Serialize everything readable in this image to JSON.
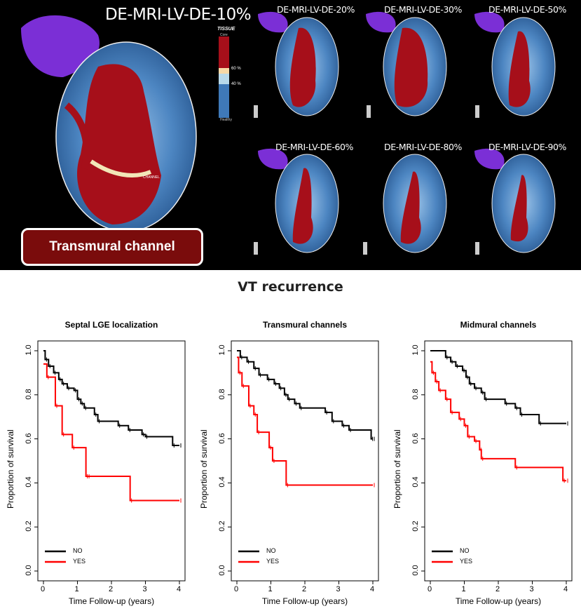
{
  "panel_top": {
    "main_label": "DE-MRI-LV-DE-10%",
    "thumb_labels": [
      "DE-MRI-LV-DE-20%",
      "DE-MRI-LV-DE-30%",
      "DE-MRI-LV-DE-50%",
      "DE-MRI-LV-DE-60%",
      "DE-MRI-LV-DE-80%",
      "DE-MRI-LV-DE-90%"
    ],
    "channel_box": "Transmural channel",
    "legend": {
      "title": "TISSUE",
      "core": "Core",
      "pct60": "60 %",
      "pct40": "40 %",
      "healthy": "Healthy"
    },
    "channel_tag": "CHANNEL",
    "colors": {
      "scar": "#a60f1a",
      "border": "#f2e6b8",
      "healthy": "#3f79b8",
      "atrium": "#7b2fd6"
    }
  },
  "section_title": "VT recurrence",
  "chart_data": [
    {
      "type": "line",
      "title": "Septal LGE localization",
      "xlabel": "Time Follow-up (years)",
      "ylabel": "Proportion of survival",
      "xlim": [
        0,
        4
      ],
      "ylim": [
        0,
        1
      ],
      "xticks": [
        "0",
        "1",
        "2",
        "3",
        "4"
      ],
      "yticks": [
        "0.0",
        "0.2",
        "0.4",
        "0.6",
        "0.8",
        "1.0"
      ],
      "legend": [
        "NO",
        "YES"
      ],
      "series": [
        {
          "name": "NO",
          "color": "#000000",
          "steps": [
            [
              0,
              1.0
            ],
            [
              0.05,
              0.96
            ],
            [
              0.15,
              0.93
            ],
            [
              0.3,
              0.9
            ],
            [
              0.45,
              0.87
            ],
            [
              0.55,
              0.85
            ],
            [
              0.7,
              0.83
            ],
            [
              0.9,
              0.82
            ],
            [
              1.0,
              0.78
            ],
            [
              1.1,
              0.76
            ],
            [
              1.2,
              0.74
            ],
            [
              1.5,
              0.71
            ],
            [
              1.6,
              0.68
            ],
            [
              2.2,
              0.66
            ],
            [
              2.5,
              0.64
            ],
            [
              2.9,
              0.62
            ],
            [
              3.0,
              0.61
            ],
            [
              3.8,
              0.57
            ],
            [
              4.0,
              0.57
            ]
          ]
        },
        {
          "name": "YES",
          "color": "#ff0000",
          "steps": [
            [
              0,
              0.94
            ],
            [
              0.1,
              0.88
            ],
            [
              0.35,
              0.75
            ],
            [
              0.55,
              0.62
            ],
            [
              0.85,
              0.56
            ],
            [
              1.25,
              0.43
            ],
            [
              1.3,
              0.43
            ],
            [
              2.55,
              0.32
            ],
            [
              4.0,
              0.32
            ]
          ]
        }
      ]
    },
    {
      "type": "line",
      "title": "Transmural channels",
      "xlabel": "Time Follow-up (years)",
      "ylabel": "Proportion of survival",
      "xlim": [
        0,
        4
      ],
      "ylim": [
        0,
        1
      ],
      "xticks": [
        "0",
        "1",
        "2",
        "3",
        "4"
      ],
      "yticks": [
        "0.0",
        "0.2",
        "0.4",
        "0.6",
        "0.8",
        "1.0"
      ],
      "legend": [
        "NO",
        "YES"
      ],
      "series": [
        {
          "name": "NO",
          "color": "#000000",
          "steps": [
            [
              0,
              1.0
            ],
            [
              0.1,
              0.97
            ],
            [
              0.3,
              0.95
            ],
            [
              0.5,
              0.92
            ],
            [
              0.65,
              0.89
            ],
            [
              0.9,
              0.87
            ],
            [
              1.1,
              0.85
            ],
            [
              1.25,
              0.83
            ],
            [
              1.4,
              0.8
            ],
            [
              1.5,
              0.78
            ],
            [
              1.7,
              0.76
            ],
            [
              1.85,
              0.74
            ],
            [
              2.6,
              0.72
            ],
            [
              2.8,
              0.68
            ],
            [
              3.1,
              0.66
            ],
            [
              3.3,
              0.64
            ],
            [
              3.95,
              0.6
            ],
            [
              4.0,
              0.6
            ]
          ]
        },
        {
          "name": "YES",
          "color": "#ff0000",
          "steps": [
            [
              0,
              0.97
            ],
            [
              0.05,
              0.9
            ],
            [
              0.15,
              0.84
            ],
            [
              0.35,
              0.75
            ],
            [
              0.5,
              0.71
            ],
            [
              0.6,
              0.63
            ],
            [
              0.95,
              0.56
            ],
            [
              1.05,
              0.5
            ],
            [
              1.45,
              0.39
            ],
            [
              4.0,
              0.39
            ]
          ]
        }
      ]
    },
    {
      "type": "line",
      "title": "Midmural channels",
      "xlabel": "Time Follow-up (years)",
      "ylabel": "Proportion of survival",
      "xlim": [
        0,
        4
      ],
      "ylim": [
        0,
        1
      ],
      "xticks": [
        "0",
        "1",
        "2",
        "3",
        "4"
      ],
      "yticks": [
        "0.0",
        "0.2",
        "0.4",
        "0.6",
        "0.8",
        "1.0"
      ],
      "legend": [
        "NO",
        "YES"
      ],
      "series": [
        {
          "name": "NO",
          "color": "#000000",
          "steps": [
            [
              0,
              1.0
            ],
            [
              0.45,
              0.97
            ],
            [
              0.6,
              0.95
            ],
            [
              0.75,
              0.93
            ],
            [
              0.95,
              0.91
            ],
            [
              1.05,
              0.88
            ],
            [
              1.15,
              0.85
            ],
            [
              1.3,
              0.83
            ],
            [
              1.5,
              0.81
            ],
            [
              1.6,
              0.78
            ],
            [
              2.2,
              0.76
            ],
            [
              2.5,
              0.74
            ],
            [
              2.65,
              0.71
            ],
            [
              3.2,
              0.67
            ],
            [
              4.0,
              0.67
            ]
          ]
        },
        {
          "name": "YES",
          "color": "#ff0000",
          "steps": [
            [
              0,
              0.95
            ],
            [
              0.05,
              0.9
            ],
            [
              0.15,
              0.86
            ],
            [
              0.25,
              0.82
            ],
            [
              0.45,
              0.78
            ],
            [
              0.6,
              0.72
            ],
            [
              0.85,
              0.69
            ],
            [
              1.0,
              0.66
            ],
            [
              1.1,
              0.61
            ],
            [
              1.3,
              0.59
            ],
            [
              1.45,
              0.55
            ],
            [
              1.5,
              0.51
            ],
            [
              2.5,
              0.47
            ],
            [
              3.9,
              0.41
            ],
            [
              4.0,
              0.41
            ]
          ]
        }
      ]
    }
  ]
}
